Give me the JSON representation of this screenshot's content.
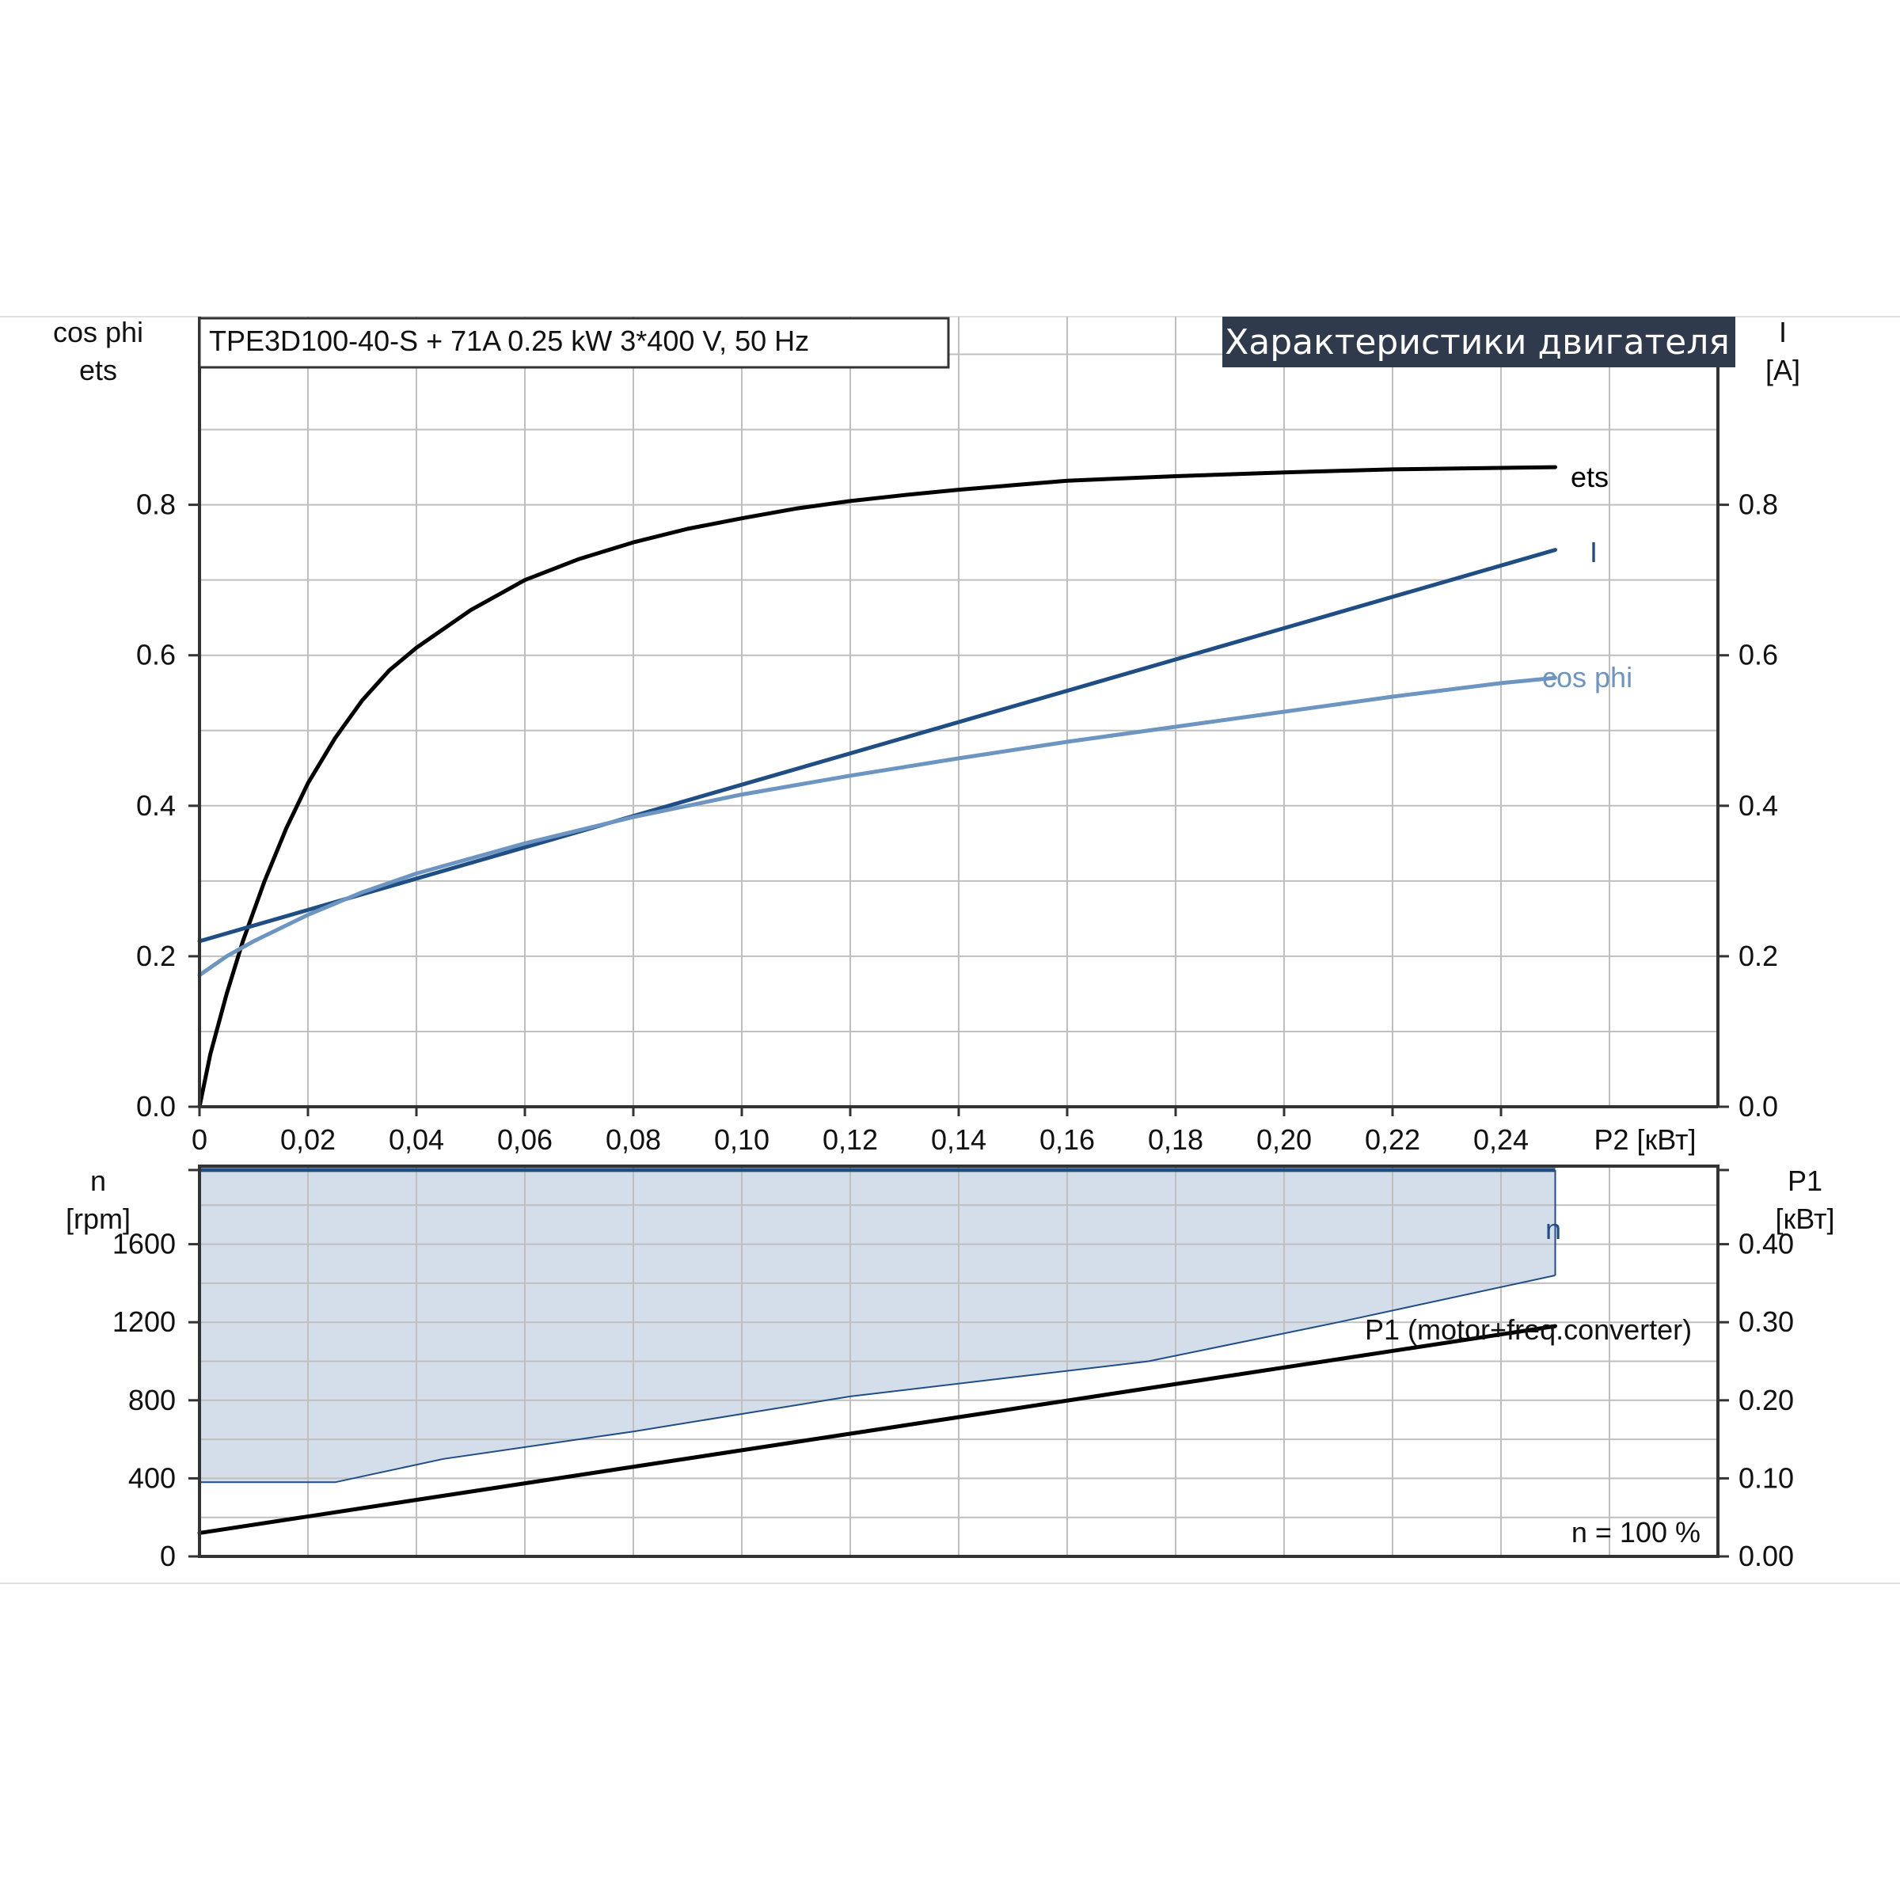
{
  "header": {
    "model_text": "TPE3D100-40-S + 71A   0.25 kW   3*400 V, 50 Hz",
    "banner": "Характеристики двигателя"
  },
  "colors": {
    "ets": "#000000",
    "current": "#1f4e85",
    "cosphi": "#6d95c2",
    "speed": "#1f4e85",
    "band_fill": "#d3deea",
    "p1": "#000000",
    "banner_bg": "#2f3b4c",
    "grid": "#bfbfbf"
  },
  "chart_data": [
    {
      "type": "line",
      "x_axis": {
        "label": "P2 [кВт]",
        "range": [
          0,
          0.28
        ],
        "ticks": [
          "0",
          "0,02",
          "0,04",
          "0,06",
          "0,08",
          "0,10",
          "0,12",
          "0,14",
          "0,16",
          "0,18",
          "0,20",
          "0,22",
          "0,24"
        ]
      },
      "y_left": {
        "label_lines": [
          "cos phi",
          "ets"
        ],
        "range": [
          0,
          1.05
        ],
        "ticks": [
          "0.0",
          "0.2",
          "0.4",
          "0.6",
          "0.8"
        ]
      },
      "y_right": {
        "label_lines": [
          "I",
          "[A]"
        ],
        "range": [
          0,
          1.05
        ],
        "ticks": [
          "0.0",
          "0.2",
          "0.4",
          "0.6",
          "0.8"
        ]
      },
      "grid": true,
      "series": [
        {
          "name": "ets",
          "color_key": "ets",
          "x": [
            0,
            0.002,
            0.005,
            0.008,
            0.012,
            0.016,
            0.02,
            0.025,
            0.03,
            0.035,
            0.04,
            0.05,
            0.06,
            0.07,
            0.08,
            0.09,
            0.1,
            0.11,
            0.12,
            0.13,
            0.14,
            0.15,
            0.16,
            0.18,
            0.2,
            0.22,
            0.24,
            0.25
          ],
          "y": [
            0.0,
            0.07,
            0.15,
            0.22,
            0.3,
            0.37,
            0.43,
            0.49,
            0.54,
            0.58,
            0.61,
            0.66,
            0.7,
            0.728,
            0.75,
            0.768,
            0.782,
            0.795,
            0.805,
            0.813,
            0.82,
            0.826,
            0.832,
            0.838,
            0.843,
            0.847,
            0.849,
            0.85
          ]
        },
        {
          "name": "I",
          "color_key": "current",
          "x": [
            0,
            0.25
          ],
          "y": [
            0.22,
            0.74
          ]
        },
        {
          "name": "cos phi",
          "color_key": "cosphi",
          "x": [
            0,
            0.005,
            0.01,
            0.02,
            0.03,
            0.04,
            0.06,
            0.08,
            0.1,
            0.12,
            0.14,
            0.16,
            0.18,
            0.2,
            0.22,
            0.24,
            0.25
          ],
          "y": [
            0.175,
            0.2,
            0.22,
            0.255,
            0.285,
            0.31,
            0.35,
            0.385,
            0.415,
            0.44,
            0.463,
            0.485,
            0.505,
            0.525,
            0.545,
            0.563,
            0.57
          ]
        }
      ]
    },
    {
      "type": "area",
      "x_axis": {
        "range": [
          0,
          0.28
        ]
      },
      "y_left": {
        "label_lines": [
          "n",
          "[rpm]"
        ],
        "range": [
          0,
          2000
        ],
        "ticks": [
          "0",
          "400",
          "800",
          "1200",
          "1600"
        ]
      },
      "y_right": {
        "label_lines": [
          "P1",
          "[кВт]"
        ],
        "range": [
          0,
          0.5
        ],
        "ticks": [
          "0.00",
          "0.10",
          "0.20",
          "0.30",
          "0.40"
        ]
      },
      "grid": true,
      "speed_band": {
        "name": "n",
        "max_rpm": 1980,
        "min_x": [
          0,
          0.025,
          0.045,
          0.08,
          0.12,
          0.175,
          0.21,
          0.25
        ],
        "min_rpm": [
          380,
          380,
          500,
          640,
          820,
          1000,
          1200,
          1440
        ]
      },
      "series": [
        {
          "name": "P1 (motor+freq.converter)",
          "color_key": "p1",
          "axis": "right",
          "x": [
            0,
            0.25
          ],
          "y": [
            0.03,
            0.295
          ]
        }
      ],
      "annotation": "n = 100 %"
    }
  ]
}
